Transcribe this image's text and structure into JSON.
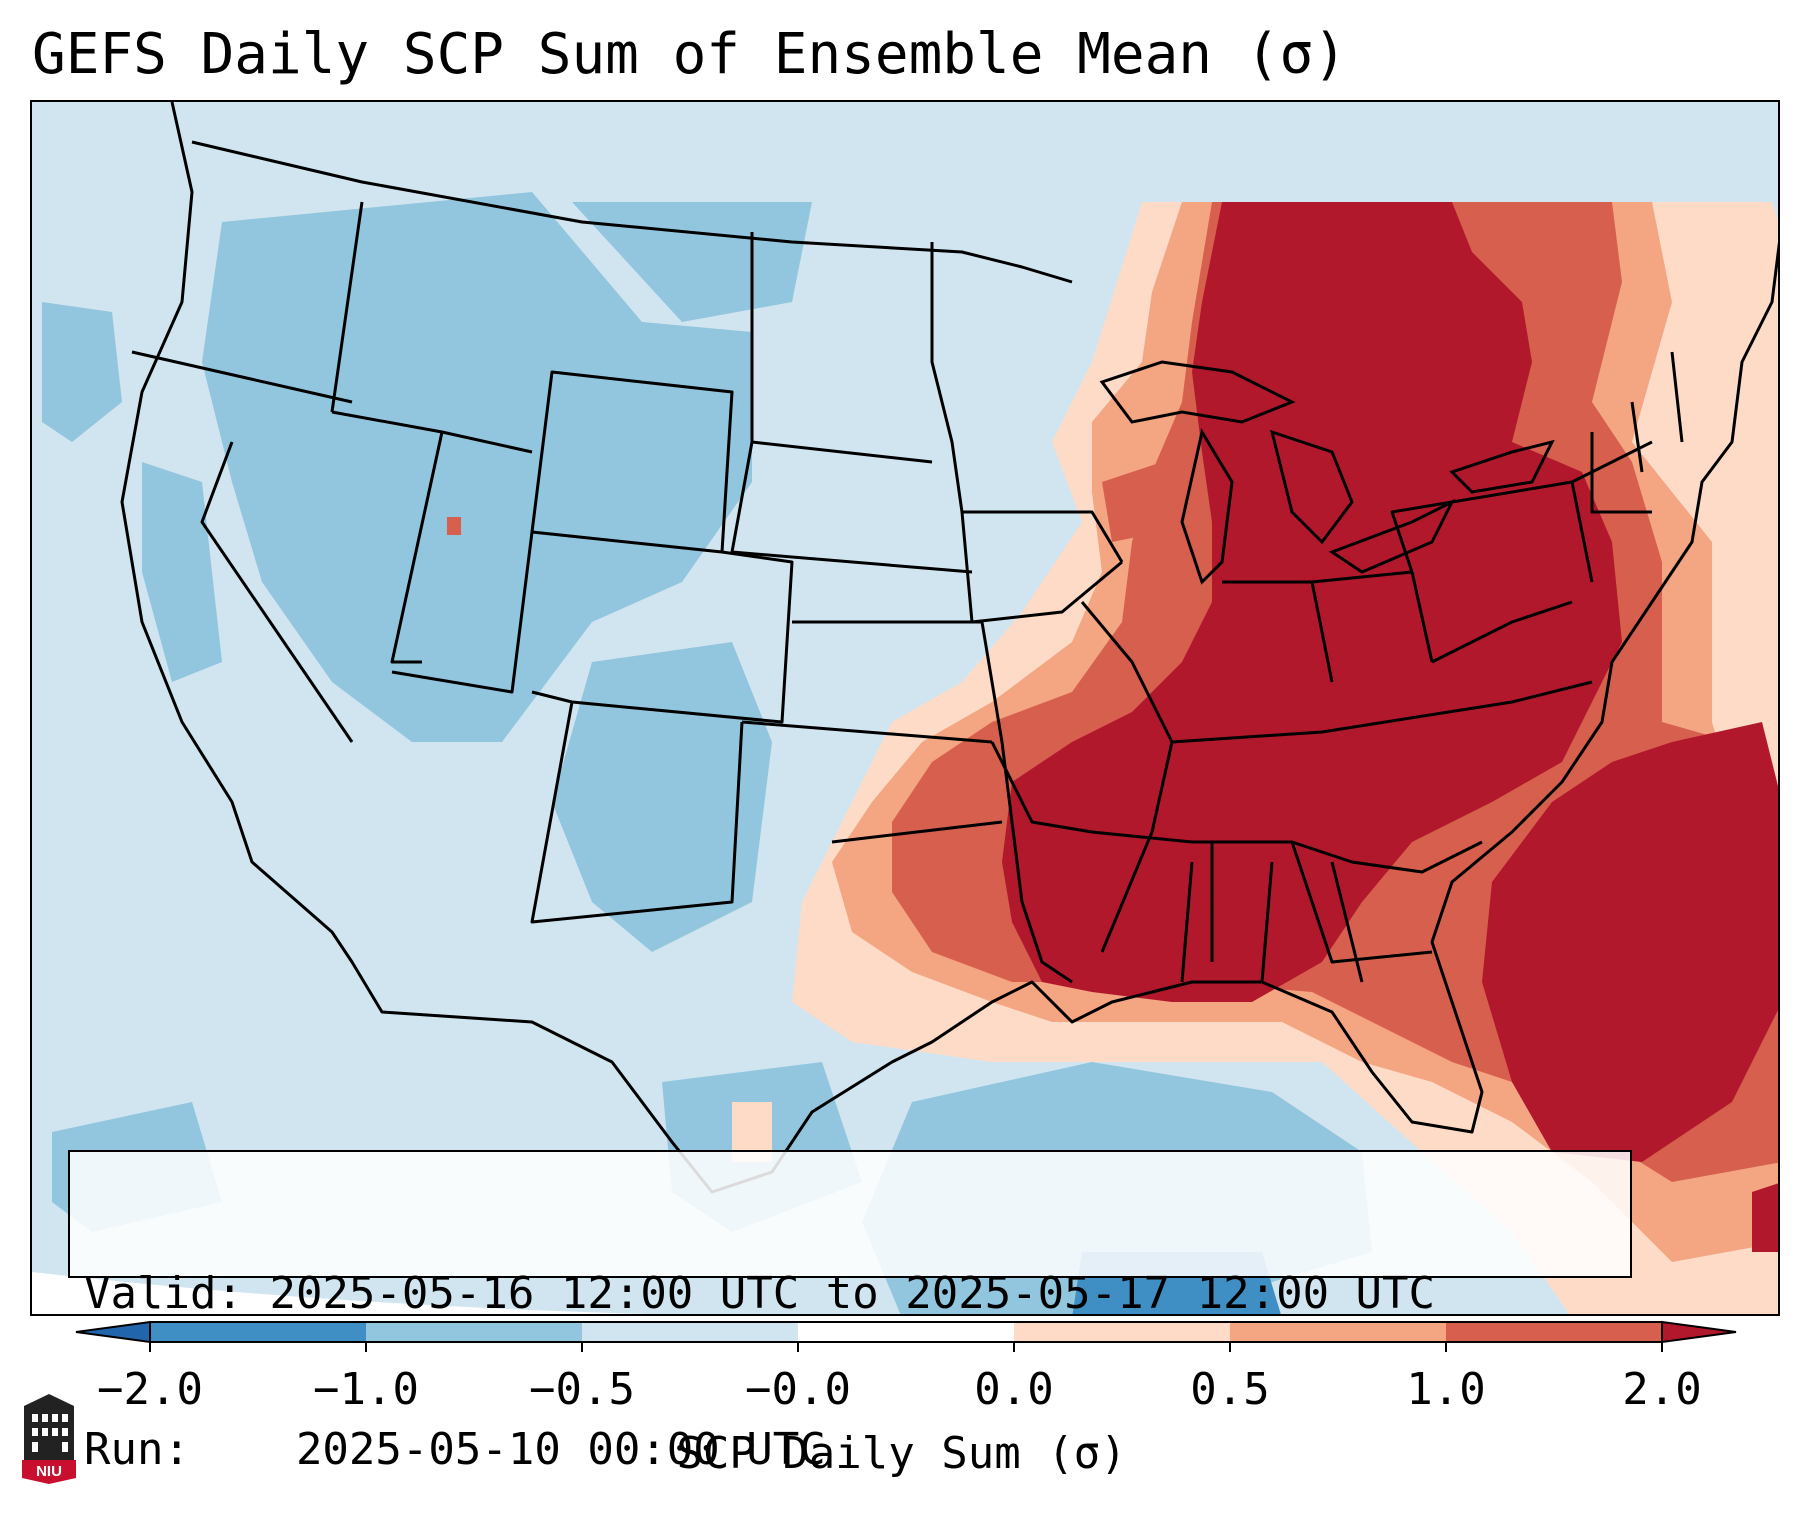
{
  "title": "GEFS Daily SCP Sum of Ensemble Mean (σ)",
  "info": {
    "valid_label": "Valid:",
    "valid_value": "2025-05-16 12:00 UTC to 2025-05-17 12:00 UTC",
    "run_label": "Run:",
    "run_value": "2025-05-10 00:00 UTC"
  },
  "colorbar": {
    "label": "SCP Daily Sum (σ)",
    "ticks": [
      "−2.0",
      "−1.0",
      "−0.5",
      "−0.0",
      "0.0",
      "0.5",
      "1.0",
      "2.0"
    ],
    "bin_colors": [
      "#3f8fc5",
      "#92c5de",
      "#d1e5f0",
      "#fddbc7",
      "#f4a582",
      "#d6604d"
    ],
    "under_color": "#2166ac",
    "over_color": "#b2182b"
  },
  "map": {
    "region": "Contiguous United States",
    "field": "SCP daily sum standardized anomaly",
    "pattern": "Strong positive anomalies (≥ 2.0 σ) over the Mississippi and Tennessee Valleys, Great Lakes, Ohio Valley, Southeast, mid-Atlantic and the western Atlantic; weakly negative to neutral values over the West, Rockies, Northern Plains and the Gulf of Mexico."
  },
  "logo": {
    "text": "NIU"
  }
}
